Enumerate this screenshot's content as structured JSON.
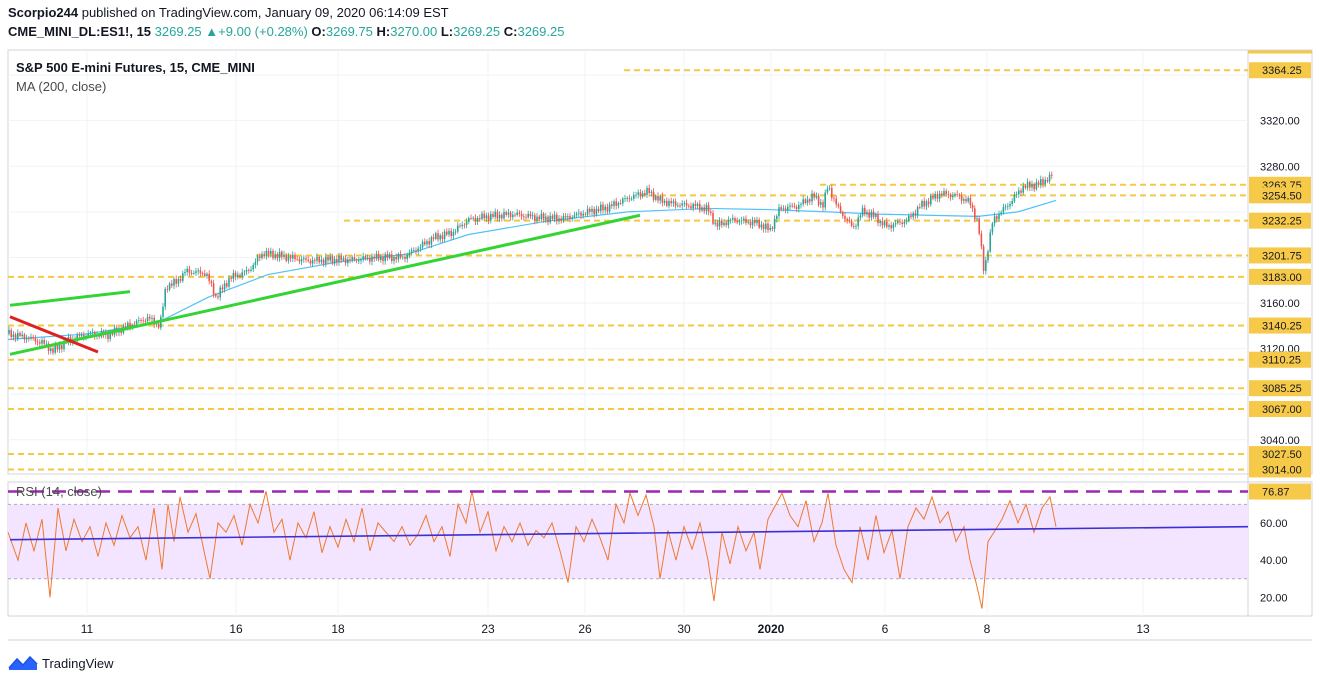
{
  "header": {
    "author": "Scorpio244",
    "published_text": "published on TradingView.com, January 09, 2020 06:14:09 EST",
    "symbol": "CME_MINI_DL:ES1!, 15",
    "last": "3269.25",
    "change": "+9.00 (+0.28%)",
    "o_label": "O:",
    "o": "3269.75",
    "h_label": "H:",
    "h": "3270.00",
    "l_label": "L:",
    "l": "3269.25",
    "c_label": "C:",
    "c": "3269.25"
  },
  "branding": {
    "logo_text": "TradingView"
  },
  "colors": {
    "level_line": "#f5c842",
    "level_label_bg": "#f7c948",
    "green_trend": "#33d433",
    "red_trend": "#e02020",
    "ma_line": "#4fc3f7",
    "rsi_line": "#f07830",
    "rsi_band": "#f3e5ff",
    "rsi_trend": "#3b2fd6",
    "rsi_level": "#9c27b0",
    "candle_up": "#26a69a",
    "candle_down": "#ef5350"
  },
  "chart_data": [
    {
      "type": "candlestick",
      "title": "S&P 500 E-mini Futures, 15, CME_MINI",
      "indicator": "MA (200, close)",
      "y_ticks": [
        3040.0,
        3080.0,
        3120.0,
        3160.0,
        3200.0,
        3240.0,
        3280.0,
        3320.0,
        3360.0
      ],
      "y_tick_labels": [
        "3040.00",
        "3120.00",
        "3160.00",
        "3280.00",
        "3320.00"
      ],
      "ylim": [
        3010,
        3382
      ],
      "x_tick_labels": [
        "11",
        "16",
        "18",
        "23",
        "26",
        "30",
        "2020",
        "6",
        "8",
        "13"
      ],
      "price_levels": [
        3364.25,
        3263.75,
        3254.5,
        3232.25,
        3201.75,
        3183.0,
        3140.25,
        3110.25,
        3085.25,
        3067.0,
        3027.5,
        3014.0
      ],
      "price_level_labels": [
        "3364.25",
        "3263.75",
        "3254.50",
        "3232.25",
        "3201.75",
        "3183.00",
        "3140.25",
        "3110.25",
        "3085.25",
        "3067.00",
        "3027.50",
        "3014.00"
      ],
      "price_series": [
        [
          0,
          3133
        ],
        [
          18,
          3130
        ],
        [
          35,
          3125
        ],
        [
          45,
          3118
        ],
        [
          60,
          3127
        ],
        [
          80,
          3133
        ],
        [
          100,
          3132
        ],
        [
          120,
          3140
        ],
        [
          140,
          3147
        ],
        [
          152,
          3140
        ],
        [
          158,
          3175
        ],
        [
          168,
          3178
        ],
        [
          178,
          3188
        ],
        [
          198,
          3186
        ],
        [
          208,
          3165
        ],
        [
          222,
          3182
        ],
        [
          240,
          3188
        ],
        [
          255,
          3204
        ],
        [
          275,
          3201
        ],
        [
          300,
          3197
        ],
        [
          320,
          3198
        ],
        [
          345,
          3198
        ],
        [
          370,
          3200
        ],
        [
          395,
          3200
        ],
        [
          408,
          3207
        ],
        [
          425,
          3217
        ],
        [
          445,
          3222
        ],
        [
          460,
          3233
        ],
        [
          480,
          3236
        ],
        [
          505,
          3238
        ],
        [
          530,
          3235
        ],
        [
          555,
          3234
        ],
        [
          580,
          3240
        ],
        [
          600,
          3244
        ],
        [
          620,
          3252
        ],
        [
          640,
          3258
        ],
        [
          652,
          3250
        ],
        [
          665,
          3247
        ],
        [
          688,
          3245
        ],
        [
          700,
          3242
        ],
        [
          708,
          3228
        ],
        [
          725,
          3233
        ],
        [
          750,
          3230
        ],
        [
          762,
          3224
        ],
        [
          772,
          3243
        ],
        [
          790,
          3245
        ],
        [
          805,
          3254
        ],
        [
          815,
          3246
        ],
        [
          820,
          3263
        ],
        [
          830,
          3243
        ],
        [
          845,
          3226
        ],
        [
          855,
          3241
        ],
        [
          868,
          3235
        ],
        [
          878,
          3227
        ],
        [
          890,
          3230
        ],
        [
          900,
          3233
        ],
        [
          912,
          3245
        ],
        [
          932,
          3256
        ],
        [
          950,
          3254
        ],
        [
          962,
          3248
        ],
        [
          970,
          3230
        ],
        [
          976,
          3188
        ],
        [
          985,
          3233
        ],
        [
          1000,
          3246
        ],
        [
          1015,
          3262
        ],
        [
          1030,
          3264
        ],
        [
          1045,
          3272
        ]
      ],
      "ma_series": [
        [
          0,
          3128
        ],
        [
          80,
          3133
        ],
        [
          150,
          3143
        ],
        [
          200,
          3165
        ],
        [
          260,
          3185
        ],
        [
          330,
          3196
        ],
        [
          400,
          3203
        ],
        [
          460,
          3220
        ],
        [
          540,
          3232
        ],
        [
          620,
          3240
        ],
        [
          700,
          3243
        ],
        [
          760,
          3242
        ],
        [
          820,
          3240
        ],
        [
          870,
          3238
        ],
        [
          920,
          3237
        ],
        [
          970,
          3236
        ],
        [
          1010,
          3240
        ],
        [
          1048,
          3250
        ]
      ],
      "trend_lines": [
        {
          "color": "green",
          "from": [
            10,
            3158
          ],
          "to": [
            130,
            3170
          ]
        },
        {
          "color": "green",
          "from": [
            10,
            3115
          ],
          "to": [
            640,
            3237
          ]
        },
        {
          "color": "red",
          "from": [
            10,
            3148
          ],
          "to": [
            98,
            3117
          ]
        }
      ]
    },
    {
      "type": "line",
      "indicator": "RSI (14, close)",
      "overbought_level": 76.87,
      "overbought_label": "76.87",
      "band": [
        30,
        70
      ],
      "ylim": [
        10,
        82
      ],
      "y_ticks": [
        20.0,
        40.0,
        60.0
      ],
      "y_tick_labels": [
        "20.00",
        "40.00",
        "60.00"
      ],
      "rsi_trend": {
        "from": [
          10,
          51
        ],
        "to": [
          1248,
          58
        ]
      },
      "rsi_series": [
        [
          0,
          55
        ],
        [
          10,
          40
        ],
        [
          18,
          60
        ],
        [
          26,
          45
        ],
        [
          34,
          62
        ],
        [
          42,
          20
        ],
        [
          50,
          68
        ],
        [
          58,
          45
        ],
        [
          66,
          62
        ],
        [
          74,
          50
        ],
        [
          82,
          58
        ],
        [
          90,
          42
        ],
        [
          98,
          60
        ],
        [
          106,
          48
        ],
        [
          114,
          64
        ],
        [
          122,
          52
        ],
        [
          130,
          58
        ],
        [
          138,
          40
        ],
        [
          146,
          68
        ],
        [
          154,
          35
        ],
        [
          160,
          70
        ],
        [
          166,
          50
        ],
        [
          172,
          74
        ],
        [
          180,
          55
        ],
        [
          188,
          65
        ],
        [
          196,
          45
        ],
        [
          202,
          30
        ],
        [
          210,
          60
        ],
        [
          218,
          55
        ],
        [
          226,
          64
        ],
        [
          234,
          48
        ],
        [
          242,
          70
        ],
        [
          250,
          60
        ],
        [
          258,
          77
        ],
        [
          266,
          55
        ],
        [
          274,
          62
        ],
        [
          282,
          40
        ],
        [
          290,
          60
        ],
        [
          298,
          52
        ],
        [
          306,
          66
        ],
        [
          314,
          44
        ],
        [
          322,
          58
        ],
        [
          330,
          47
        ],
        [
          338,
          62
        ],
        [
          346,
          50
        ],
        [
          354,
          68
        ],
        [
          362,
          45
        ],
        [
          370,
          60
        ],
        [
          378,
          55
        ],
        [
          386,
          50
        ],
        [
          394,
          58
        ],
        [
          402,
          48
        ],
        [
          410,
          54
        ],
        [
          418,
          64
        ],
        [
          426,
          50
        ],
        [
          434,
          58
        ],
        [
          442,
          42
        ],
        [
          450,
          70
        ],
        [
          458,
          60
        ],
        [
          464,
          77
        ],
        [
          472,
          55
        ],
        [
          480,
          66
        ],
        [
          488,
          45
        ],
        [
          496,
          58
        ],
        [
          504,
          50
        ],
        [
          512,
          60
        ],
        [
          520,
          48
        ],
        [
          528,
          56
        ],
        [
          536,
          52
        ],
        [
          544,
          60
        ],
        [
          552,
          45
        ],
        [
          560,
          28
        ],
        [
          568,
          58
        ],
        [
          576,
          50
        ],
        [
          584,
          62
        ],
        [
          592,
          52
        ],
        [
          600,
          40
        ],
        [
          608,
          70
        ],
        [
          616,
          60
        ],
        [
          622,
          76
        ],
        [
          630,
          64
        ],
        [
          638,
          75
        ],
        [
          646,
          58
        ],
        [
          652,
          30
        ],
        [
          660,
          56
        ],
        [
          668,
          40
        ],
        [
          676,
          58
        ],
        [
          684,
          46
        ],
        [
          692,
          60
        ],
        [
          700,
          40
        ],
        [
          706,
          18
        ],
        [
          714,
          55
        ],
        [
          722,
          38
        ],
        [
          730,
          58
        ],
        [
          738,
          45
        ],
        [
          746,
          55
        ],
        [
          752,
          35
        ],
        [
          760,
          62
        ],
        [
          768,
          70
        ],
        [
          774,
          76
        ],
        [
          782,
          64
        ],
        [
          790,
          58
        ],
        [
          798,
          72
        ],
        [
          806,
          50
        ],
        [
          814,
          60
        ],
        [
          820,
          76
        ],
        [
          828,
          48
        ],
        [
          836,
          35
        ],
        [
          844,
          28
        ],
        [
          852,
          58
        ],
        [
          860,
          40
        ],
        [
          868,
          64
        ],
        [
          876,
          44
        ],
        [
          884,
          56
        ],
        [
          892,
          30
        ],
        [
          900,
          58
        ],
        [
          908,
          68
        ],
        [
          916,
          62
        ],
        [
          924,
          74
        ],
        [
          932,
          60
        ],
        [
          940,
          66
        ],
        [
          948,
          50
        ],
        [
          956,
          58
        ],
        [
          962,
          40
        ],
        [
          968,
          28
        ],
        [
          974,
          14
        ],
        [
          980,
          50
        ],
        [
          986,
          55
        ],
        [
          994,
          62
        ],
        [
          1002,
          72
        ],
        [
          1010,
          60
        ],
        [
          1018,
          70
        ],
        [
          1026,
          55
        ],
        [
          1034,
          68
        ],
        [
          1042,
          74
        ],
        [
          1048,
          58
        ]
      ]
    }
  ]
}
